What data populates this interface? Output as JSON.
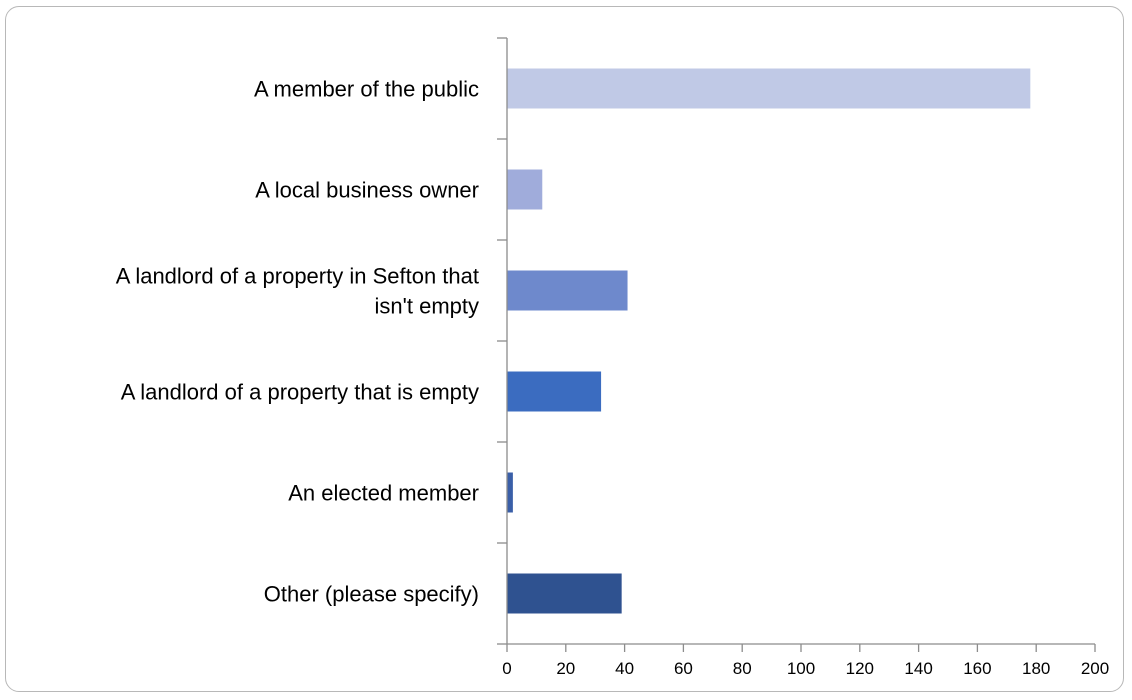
{
  "chart_data": {
    "type": "bar",
    "orientation": "horizontal",
    "title": "",
    "xlabel": "",
    "ylabel": "",
    "categories": [
      "A member of the public",
      "A local business owner",
      "A landlord of a property in Sefton that isn't empty",
      "A landlord of a property that is empty",
      "An elected member",
      "Other (please specify)"
    ],
    "category_lines": [
      [
        "A member of the public"
      ],
      [
        "A local business owner"
      ],
      [
        "A landlord of a property in Sefton that",
        "isn't empty"
      ],
      [
        "A landlord of a property that is empty"
      ],
      [
        "An elected member"
      ],
      [
        "Other (please specify)"
      ]
    ],
    "values": [
      178,
      12,
      41,
      32,
      2,
      39
    ],
    "xlim": [
      0,
      200
    ],
    "xticks": [
      0,
      20,
      40,
      60,
      80,
      100,
      120,
      140,
      160,
      180,
      200
    ],
    "grid": false,
    "legend": "none",
    "bar_colors": [
      "#c0c9e6",
      "#a0acdb",
      "#6e89cc",
      "#3b6cc0",
      "#3a5fa8",
      "#2f5290"
    ],
    "axis_color": "#8c8c8c"
  }
}
